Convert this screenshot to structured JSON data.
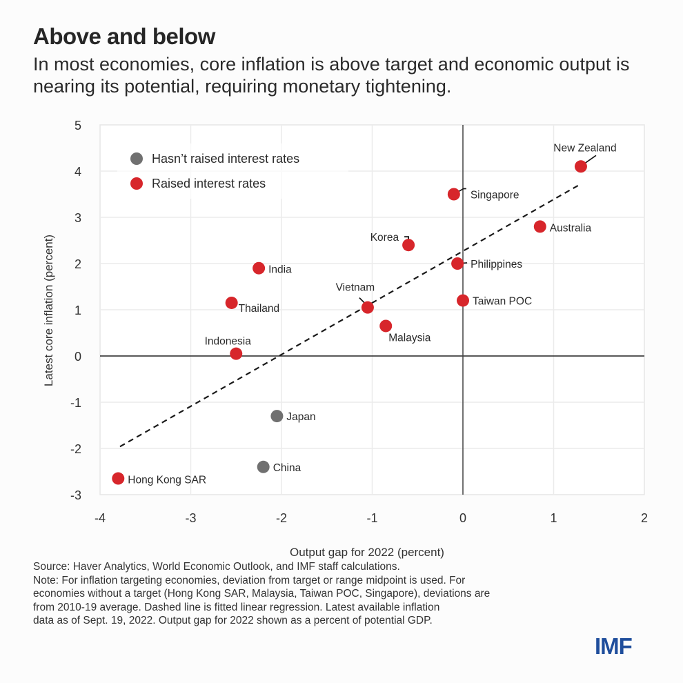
{
  "header": {
    "title": "Above and below",
    "subtitle": "In most economies, core inflation is above target and economic output is nearing its potential, requiring monetary tightening."
  },
  "footnote": {
    "lines": [
      "Source: Haver Analytics, World Economic Outlook, and IMF staff calculations.",
      "Note: For inflation targeting economies, deviation from target or range midpoint is used. For",
      "economies without a target (Hong Kong SAR, Malaysia, Taiwan POC, Singapore), deviations are",
      "from 2010-19 average. Dashed line is fitted linear regression. Latest available inflation",
      "data as of Sept. 19, 2022. Output gap for 2022 shown as a percent of potential GDP."
    ]
  },
  "logo": {
    "text": "IMF",
    "color": "#1f4e9c"
  },
  "chart_data": {
    "type": "scatter",
    "title": "Above and below",
    "xlabel": "Output gap for 2022 (percent)",
    "ylabel": "Latest core inflation (percent)",
    "xlim": [
      -4,
      2
    ],
    "ylim": [
      -3,
      5
    ],
    "xticks": [
      -4,
      -3,
      -2,
      -1,
      0,
      1,
      2
    ],
    "yticks": [
      5,
      4,
      3,
      2,
      1,
      0,
      -1,
      -2,
      -3
    ],
    "grid": true,
    "legend": {
      "placement": "top-left",
      "entries": [
        {
          "key": "not_raised",
          "label": "Hasn’t raised interest rates",
          "color": "#707070"
        },
        {
          "key": "raised",
          "label": "Raised interest rates",
          "color": "#d7262b"
        }
      ]
    },
    "series": [
      {
        "name": "Raised interest rates",
        "key": "raised",
        "color": "#d7262b",
        "points": [
          {
            "label": "New Zealand",
            "x": 1.3,
            "y": 4.1
          },
          {
            "label": "Singapore",
            "x": -0.1,
            "y": 3.5
          },
          {
            "label": "Australia",
            "x": 0.85,
            "y": 2.8
          },
          {
            "label": "Korea",
            "x": -0.6,
            "y": 2.4
          },
          {
            "label": "Philippines",
            "x": -0.06,
            "y": 2.0
          },
          {
            "label": "India",
            "x": -2.25,
            "y": 1.9
          },
          {
            "label": "Taiwan POC",
            "x": 0.0,
            "y": 1.2
          },
          {
            "label": "Thailand",
            "x": -2.55,
            "y": 1.15
          },
          {
            "label": "Vietnam",
            "x": -1.05,
            "y": 1.05
          },
          {
            "label": "Malaysia",
            "x": -0.85,
            "y": 0.65
          },
          {
            "label": "Indonesia",
            "x": -2.5,
            "y": 0.05
          },
          {
            "label": "Hong Kong SAR",
            "x": -3.8,
            "y": -2.65
          }
        ]
      },
      {
        "name": "Hasn’t raised interest rates",
        "key": "not_raised",
        "color": "#707070",
        "points": [
          {
            "label": "Japan",
            "x": -2.05,
            "y": -1.3
          },
          {
            "label": "China",
            "x": -2.2,
            "y": -2.4
          }
        ]
      }
    ],
    "regression": {
      "style": "dashed",
      "x_start": -3.78,
      "y_start": -1.96,
      "x_end": 1.28,
      "y_end": 3.7
    }
  }
}
